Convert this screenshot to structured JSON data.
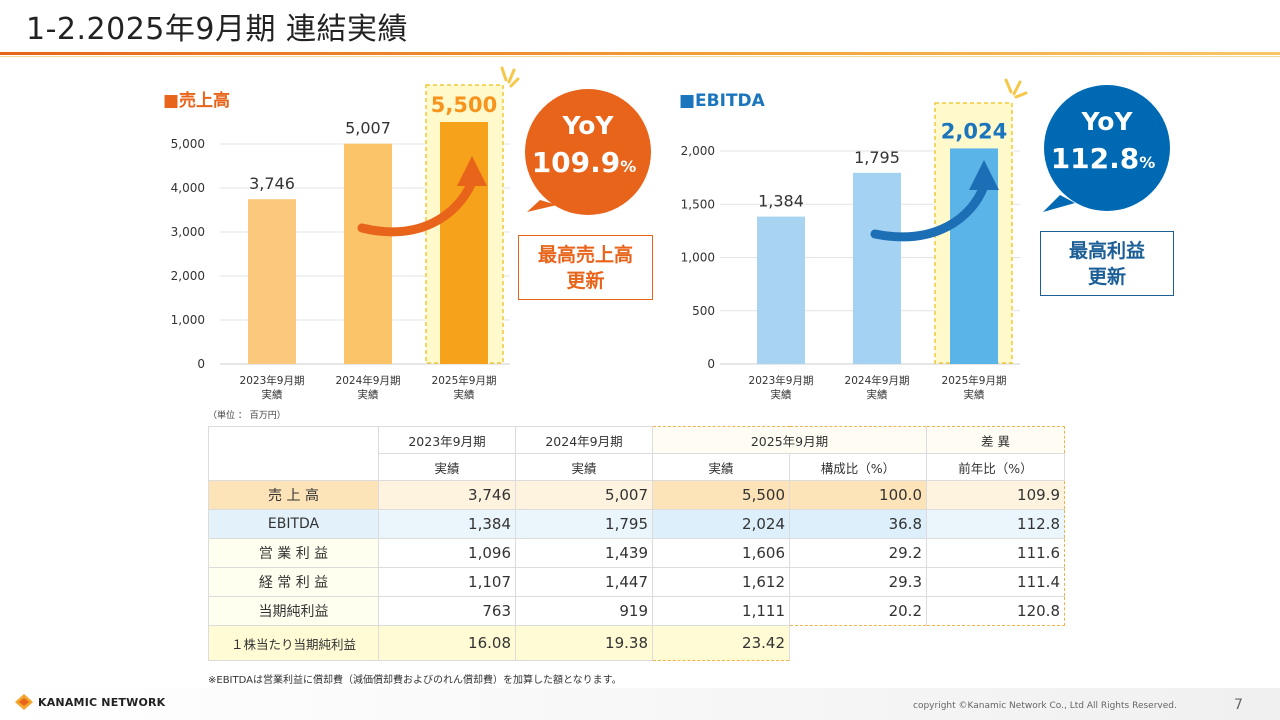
{
  "page": {
    "title": "1-2.2025年9月期 連結実績",
    "unit_note": "（単位 ： 百万円）",
    "footnote": "※EBITDAは営業利益に償却費（減価償却費およびのれん償却費）を加算した額となります。",
    "company": "KANAMIC NETWORK",
    "copyright": "copyright ©Kanamic Network Co., Ltd All Rights Reserved.",
    "page_number": "7"
  },
  "chart_data": [
    {
      "type": "bar",
      "title": "■売上高",
      "categories": [
        [
          "2023年9月期",
          "実績"
        ],
        [
          "2024年9月期",
          "実績"
        ],
        [
          "2025年9月期",
          "実績"
        ]
      ],
      "values": [
        3746,
        5007,
        5500
      ],
      "value_labels": [
        "3,746",
        "5,007",
        "5,500"
      ],
      "yticks": [
        "0",
        "1,000",
        "2,000",
        "3,000",
        "4,000",
        "5,000"
      ],
      "ylim": [
        0,
        5000
      ],
      "colors": [
        "#fbc97e",
        "#fbc468",
        "#f7a21b"
      ],
      "label_color": "#333333",
      "highlight_label_color": "#f7941d",
      "yoy_label": "YoY",
      "yoy_value": "109.9",
      "yoy_unit": "%",
      "yoy_color": "#e8641b",
      "badge_lines": [
        "最高売上高",
        "更新"
      ],
      "badge_color": "#e8641b"
    },
    {
      "type": "bar",
      "title": "■EBITDA",
      "categories": [
        [
          "2023年9月期",
          "実績"
        ],
        [
          "2024年9月期",
          "実績"
        ],
        [
          "2025年9月期",
          "実績"
        ]
      ],
      "values": [
        1384,
        1795,
        2024
      ],
      "value_labels": [
        "1,384",
        "1,795",
        "2,024"
      ],
      "yticks": [
        "0",
        "500",
        "1,000",
        "1,500",
        "2,000"
      ],
      "ylim": [
        0,
        2000
      ],
      "colors": [
        "#a9d4f1",
        "#a4d2f2",
        "#5ab4e8"
      ],
      "label_color": "#333333",
      "highlight_label_color": "#1a75bc",
      "yoy_label": "YoY",
      "yoy_value": "112.8",
      "yoy_unit": "%",
      "yoy_color": "#0069b4",
      "badge_lines": [
        "最高利益",
        "更新"
      ],
      "badge_color": "#1b5f96"
    }
  ],
  "table": {
    "header_top": [
      "2023年9月期",
      "2024年9月期",
      "2025年9月期",
      "差 異"
    ],
    "header_sub": [
      "実績",
      "実績",
      "実績",
      "構成比（%）",
      "前年比（%）"
    ],
    "rows": [
      {
        "label": "売 上 高",
        "values": [
          "3,746",
          "5,007",
          "5,500",
          "100.0",
          "109.9"
        ]
      },
      {
        "label": "EBITDA",
        "values": [
          "1,384",
          "1,795",
          "2,024",
          "36.8",
          "112.8"
        ]
      },
      {
        "label": "営 業 利 益",
        "values": [
          "1,096",
          "1,439",
          "1,606",
          "29.2",
          "111.6"
        ]
      },
      {
        "label": "経 常 利 益",
        "values": [
          "1,107",
          "1,447",
          "1,612",
          "29.3",
          "111.4"
        ]
      },
      {
        "label": "当期純利益",
        "values": [
          "763",
          "919",
          "1,111",
          "20.2",
          "120.8"
        ]
      }
    ],
    "eps_row": {
      "label": "１株当たり当期純利益",
      "values": [
        "16.08",
        "19.38",
        "23.42"
      ]
    }
  }
}
